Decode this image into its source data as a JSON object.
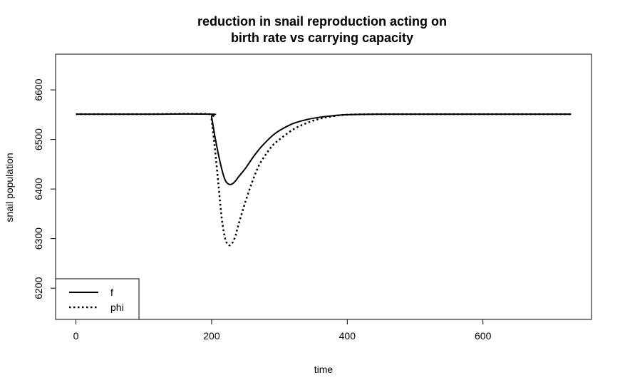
{
  "chart_data": {
    "type": "line",
    "title_line1": "reduction in snail reproduction acting on",
    "title_line2": "birth rate vs carrying capacity",
    "xlabel": "time",
    "ylabel": "snail population",
    "xlim": [
      -30,
      760
    ],
    "ylim": [
      6137,
      6672
    ],
    "x_ticks": [
      0,
      200,
      400,
      600
    ],
    "x_tick_labels": [
      "0",
      "200",
      "400",
      "600"
    ],
    "y_ticks": [
      6200,
      6300,
      6400,
      6500,
      6600
    ],
    "y_tick_labels": [
      "6200",
      "6300",
      "6400",
      "6500",
      "6600"
    ],
    "grid": false,
    "legend_position": "bottom-left",
    "series": [
      {
        "name": "f",
        "style": "solid",
        "color": "#000000",
        "x": [
          0,
          100,
          198,
          200,
          205,
          210,
          215,
          220,
          225,
          230,
          235,
          240,
          250,
          260,
          270,
          280,
          290,
          300,
          320,
          340,
          360,
          380,
          400,
          450,
          500,
          600,
          730
        ],
        "y": [
          6551,
          6551,
          6551,
          6545,
          6505,
          6470,
          6440,
          6418,
          6410,
          6410,
          6416,
          6425,
          6442,
          6462,
          6480,
          6495,
          6508,
          6518,
          6532,
          6540,
          6545,
          6548,
          6550,
          6551,
          6551,
          6551,
          6551
        ]
      },
      {
        "name": "phi",
        "style": "dotted",
        "color": "#000000",
        "x": [
          0,
          100,
          198,
          200,
          205,
          210,
          215,
          220,
          225,
          230,
          235,
          240,
          250,
          260,
          270,
          280,
          290,
          300,
          320,
          340,
          360,
          380,
          400,
          450,
          500,
          600,
          730
        ],
        "y": [
          6551,
          6551,
          6551,
          6540,
          6480,
          6410,
          6340,
          6300,
          6287,
          6290,
          6305,
          6330,
          6375,
          6415,
          6448,
          6470,
          6488,
          6500,
          6520,
          6533,
          6542,
          6547,
          6550,
          6551,
          6551,
          6551,
          6551
        ]
      }
    ]
  }
}
